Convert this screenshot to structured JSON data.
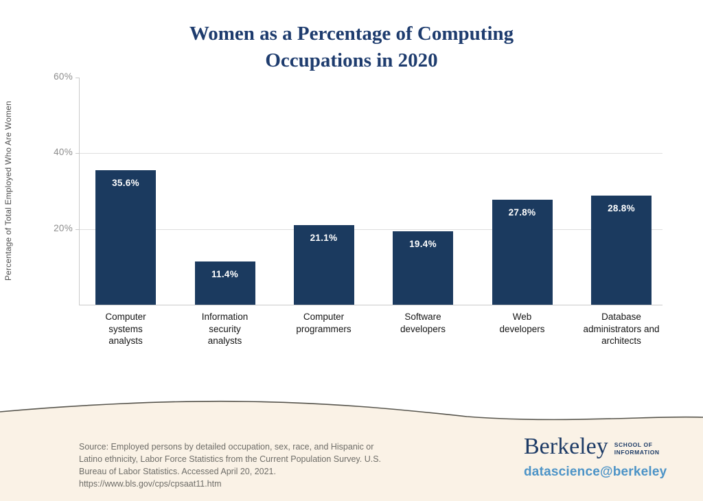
{
  "title_lines": [
    "Women as a Percentage of Computing",
    "Occupations in 2020"
  ],
  "chart_data": {
    "type": "bar",
    "title": "Women as a Percentage of Computing Occupations in 2020",
    "categories": [
      "Computer systems analysts",
      "Information security analysts",
      "Computer programmers",
      "Software developers",
      "Web developers",
      "Database administrators and architects"
    ],
    "category_lines": [
      [
        "Computer",
        "systems",
        "analysts"
      ],
      [
        "Information",
        "security",
        "analysts"
      ],
      [
        "Computer",
        "programmers"
      ],
      [
        "Software",
        "developers"
      ],
      [
        "Web",
        "developers"
      ],
      [
        "Database",
        "administrators and",
        "architects"
      ]
    ],
    "values": [
      35.6,
      11.4,
      21.1,
      19.4,
      27.8,
      28.8
    ],
    "data_labels": [
      "35.6%",
      "11.4%",
      "21.1%",
      "19.4%",
      "27.8%",
      "28.8%"
    ],
    "xlabel": "",
    "ylabel": "Percentage of Total Employed Who Are Women",
    "ylim": [
      0,
      60
    ],
    "yticks": [
      {
        "value": 60,
        "label": "60%"
      },
      {
        "value": 40,
        "label": "40%"
      },
      {
        "value": 20,
        "label": "20%"
      }
    ],
    "gridline_values": [
      40,
      20
    ],
    "grid": "horizontal only",
    "legend": "none",
    "bar_color": "#1b3a5f",
    "data_label_color": "#ffffff"
  },
  "footer": {
    "source_text": "Source: Employed persons by detailed occupation, sex, race, and Hispanic or Latino ethnicity, Labor Force Statistics from the Current Population Survey. U.S. Bureau of Labor Statistics. Accessed April 20, 2021. https://www.bls.gov/cps/cpsaat11.htm",
    "logo": {
      "wordmark": "Berkeley",
      "school_line1": "SCHOOL OF",
      "school_line2": "INFORMATION",
      "tagline": "datascience@berkeley"
    },
    "background_color": "#faf2e6",
    "wave_line_color": "#56544c"
  },
  "colors": {
    "title": "#1e3c6e",
    "bar": "#1b3a5f",
    "tagline_blue": "#4d94c7",
    "tick_gray": "#8c8c8c"
  }
}
